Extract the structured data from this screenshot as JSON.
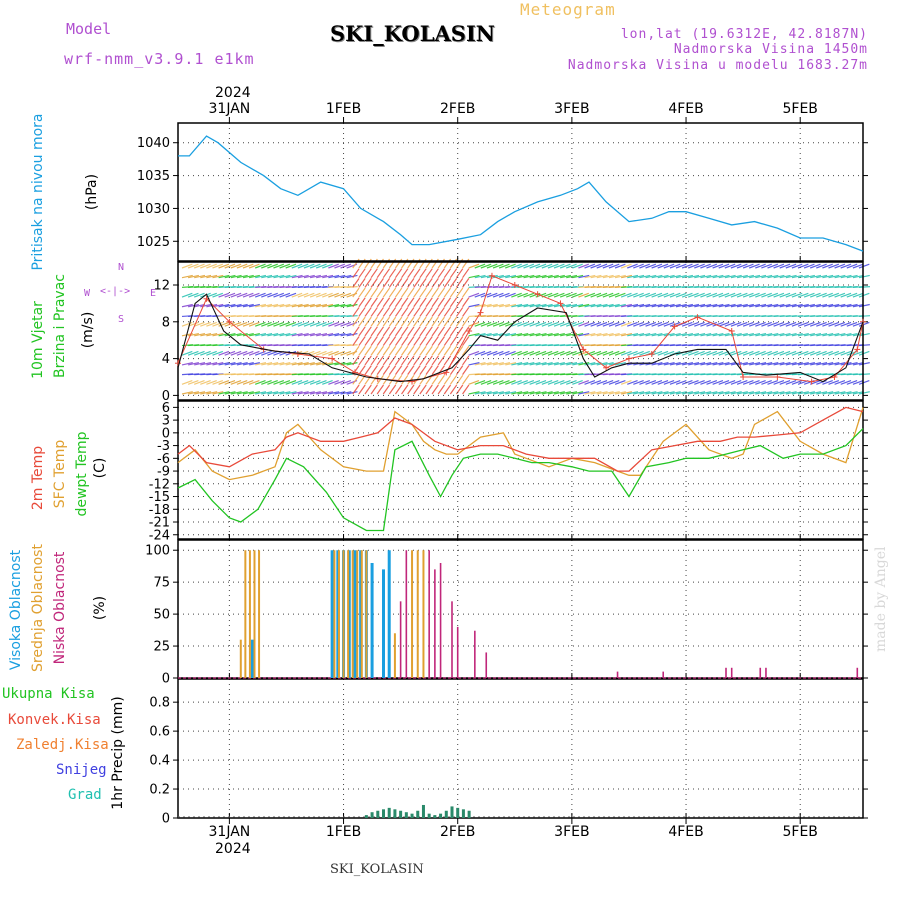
{
  "header": {
    "model_label": "Model",
    "model_name": "wrf-nmm_v3.9.1  e1km",
    "station": "SKI_KOLASIN",
    "product": "Meteogram",
    "lonlat": "lon,lat (19.6312E, 42.8187N)",
    "elevation": "Nadmorska Visina 1450m",
    "model_elevation": "Nadmorska Visina u modelu 1683.27m",
    "footer_station": "SKI_KOLASIN",
    "credit": "made by Angel"
  },
  "colors": {
    "pressure": "#1a9fe0",
    "temp": "#e84a3a",
    "sfc_temp": "#e0a030",
    "dewpt": "#22c422",
    "high_cloud": "#1a9fe0",
    "mid_cloud": "#e0a030",
    "low_cloud": "#c0267a",
    "precip": "#2a8a6a",
    "header_purple": "#b050d0",
    "header_orange": "#f0c060"
  },
  "time_axis": {
    "year": "2024",
    "labels": [
      "31JAN",
      "1FEB",
      "2FEB",
      "3FEB",
      "4FEB",
      "5FEB"
    ],
    "day_start": 30.55,
    "day_end": 36.55
  },
  "chart_data": [
    {
      "type": "line",
      "ylabel_lines": [
        "Pritisak na nivou mora",
        "(hPa)"
      ],
      "ylim": [
        1022,
        1043
      ],
      "yticks": [
        "1025",
        "1030",
        "1035",
        "1040"
      ],
      "series": [
        {
          "x": [
            30.55,
            30.65,
            30.8,
            30.9,
            31.1,
            31.3,
            31.45,
            31.6,
            31.8,
            32.0,
            32.15,
            32.35,
            32.5,
            32.6,
            32.75,
            33.0,
            33.2,
            33.35,
            33.5,
            33.7,
            33.9,
            34.05,
            34.15,
            34.3,
            34.5,
            34.7,
            34.85,
            35.0,
            35.2,
            35.4,
            35.6,
            35.8,
            36.0,
            36.2,
            36.4,
            36.55
          ],
          "values": [
            1038,
            1038,
            1041,
            1040,
            1037,
            1035,
            1033,
            1032,
            1034,
            1033,
            1030,
            1028,
            1026,
            1024.5,
            1024.5,
            1025.3,
            1026,
            1028,
            1029.5,
            1031,
            1032,
            1033,
            1034,
            1031,
            1028,
            1028.5,
            1029.5,
            1029.5,
            1028.5,
            1027.5,
            1028,
            1027,
            1025.5,
            1025.5,
            1024.5,
            1023.5
          ]
        }
      ]
    },
    {
      "type": "line",
      "ylabel_lines": [
        "10m Vjetar",
        "Brzina i Pravac",
        "(m/s)"
      ],
      "ylim": [
        -0.5,
        14.5
      ],
      "yticks": [
        "0",
        "4",
        "8",
        "12"
      ],
      "compass": [
        "N",
        "<-|->",
        "S",
        "W",
        "E"
      ],
      "series": [
        {
          "name": "speed",
          "x": [
            30.55,
            30.7,
            30.8,
            30.95,
            31.1,
            31.4,
            31.7,
            31.9,
            32.2,
            32.5,
            32.7,
            32.95,
            33.1,
            33.2,
            33.35,
            33.5,
            33.7,
            33.95,
            34.1,
            34.2,
            34.35,
            34.5,
            34.7,
            34.9,
            35.1,
            35.35,
            35.5,
            35.7,
            36.0,
            36.2,
            36.4,
            36.55
          ],
          "values": [
            3,
            10,
            11,
            7,
            5.5,
            4.8,
            4.5,
            3,
            2,
            1.5,
            1.8,
            3,
            5,
            6.5,
            6,
            8,
            9.5,
            9,
            4,
            2,
            3,
            3.5,
            3.5,
            4.5,
            5,
            5,
            2.5,
            2.2,
            2.5,
            1.5,
            3,
            8
          ]
        },
        {
          "name": "gust",
          "x": [
            30.55,
            30.8,
            31.0,
            31.3,
            31.6,
            31.9,
            32.1,
            32.3,
            32.6,
            32.9,
            33.1,
            33.2,
            33.3,
            33.5,
            33.7,
            33.9,
            34.1,
            34.3,
            34.5,
            34.7,
            34.9,
            35.1,
            35.4,
            35.5,
            35.8,
            36.1,
            36.3,
            36.5,
            36.55
          ],
          "values": [
            3.5,
            10.5,
            8,
            5,
            4.5,
            4,
            2.5,
            1.8,
            1.5,
            2.5,
            7,
            9,
            13,
            12,
            11,
            10,
            5,
            3,
            4,
            4.5,
            7.5,
            8.5,
            7,
            2,
            2,
            1.5,
            2,
            5,
            8
          ]
        }
      ]
    },
    {
      "type": "line",
      "ylabel_lines": [
        "2m Temp",
        "SFC Temp",
        "dewpt Temp",
        "(C)"
      ],
      "ylim": [
        -25,
        7.5
      ],
      "yticks": [
        "6",
        "3",
        "0",
        "-3",
        "-6",
        "-9",
        "-12",
        "-15",
        "-18",
        "-21",
        "-24"
      ],
      "series": [
        {
          "name": "2m Temp",
          "x": [
            30.55,
            30.65,
            30.8,
            31.0,
            31.2,
            31.4,
            31.5,
            31.6,
            31.8,
            32.0,
            32.15,
            32.3,
            32.45,
            32.6,
            32.8,
            33.0,
            33.2,
            33.4,
            33.6,
            33.8,
            34.0,
            34.2,
            34.4,
            34.5,
            34.7,
            34.9,
            35.1,
            35.3,
            35.45,
            35.6,
            35.8,
            36.0,
            36.2,
            36.4,
            36.55
          ],
          "values": [
            -5,
            -3,
            -7,
            -8,
            -5,
            -4,
            -1,
            0,
            -2,
            -2,
            -1,
            0,
            3.5,
            2,
            -2,
            -4,
            -3,
            -3,
            -5,
            -6,
            -6,
            -6,
            -9,
            -9,
            -4,
            -3,
            -2,
            -2,
            -1,
            -1,
            -0.5,
            0,
            3,
            6,
            5
          ]
        },
        {
          "name": "SFC Temp",
          "x": [
            30.55,
            30.7,
            30.85,
            31.0,
            31.2,
            31.4,
            31.5,
            31.6,
            31.8,
            32.0,
            32.2,
            32.35,
            32.45,
            32.6,
            32.7,
            32.8,
            32.9,
            33.0,
            33.2,
            33.4,
            33.5,
            33.6,
            33.8,
            34.0,
            34.2,
            34.4,
            34.5,
            34.6,
            34.8,
            35.0,
            35.2,
            35.4,
            35.5,
            35.6,
            35.8,
            36.0,
            36.2,
            36.4,
            36.55
          ],
          "values": [
            -7,
            -4,
            -9,
            -11,
            -10,
            -8,
            0,
            2,
            -4,
            -8,
            -9,
            -9,
            5,
            2,
            -2,
            -4,
            -5,
            -5,
            -1,
            0,
            -5,
            -6,
            -8,
            -6,
            -7,
            -9,
            -10,
            -10,
            -2,
            2,
            -4,
            -6,
            -5,
            2,
            5,
            -2,
            -5,
            -7,
            6
          ]
        },
        {
          "name": "dewpt Temp",
          "x": [
            30.55,
            30.7,
            30.85,
            31.0,
            31.1,
            31.25,
            31.4,
            31.5,
            31.65,
            31.85,
            32.0,
            32.2,
            32.35,
            32.45,
            32.6,
            32.75,
            32.85,
            32.95,
            33.05,
            33.2,
            33.35,
            33.5,
            33.65,
            33.8,
            34.0,
            34.15,
            34.35,
            34.5,
            34.65,
            34.85,
            35.0,
            35.2,
            35.35,
            35.5,
            35.65,
            35.85,
            36.0,
            36.2,
            36.4,
            36.55
          ],
          "values": [
            -13,
            -11,
            -16,
            -20,
            -21,
            -18,
            -11,
            -6,
            -8,
            -14,
            -20,
            -23,
            -23,
            -4,
            -2,
            -10,
            -15,
            -10,
            -6,
            -5,
            -5,
            -6,
            -7,
            -7,
            -8,
            -9,
            -9,
            -15,
            -8,
            -7,
            -6,
            -6,
            -5,
            -4,
            -3,
            -6,
            -5,
            -5,
            -3,
            1
          ]
        }
      ]
    },
    {
      "type": "bar",
      "ylabel_lines": [
        "Visoka Oblacnost",
        "Srednja Oblacnost",
        "Niska Oblacnost",
        "(%)"
      ],
      "ylim": [
        0,
        108
      ],
      "yticks": [
        "0",
        "25",
        "50",
        "75",
        "100"
      ],
      "series": [
        {
          "name": "Visoka Oblacnost",
          "x": [
            31.2,
            31.9,
            31.95,
            32.0,
            32.05,
            32.1,
            32.15,
            32.2,
            32.25,
            32.35,
            32.4
          ],
          "values": [
            30,
            100,
            100,
            100,
            100,
            100,
            100,
            100,
            90,
            85,
            100
          ]
        },
        {
          "name": "Srednja Oblacnost",
          "x": [
            31.1,
            31.14,
            31.18,
            31.22,
            31.26,
            31.92,
            31.96,
            32.0,
            32.04,
            32.08,
            32.12,
            32.16,
            32.2,
            32.45,
            32.6,
            32.65,
            32.7
          ],
          "values": [
            30,
            100,
            100,
            100,
            100,
            100,
            100,
            100,
            100,
            100,
            100,
            100,
            100,
            35,
            100,
            100,
            100
          ]
        },
        {
          "name": "Niska Oblacnost",
          "x": [
            32.5,
            32.55,
            32.75,
            32.8,
            32.85,
            32.95,
            33.0,
            33.15,
            33.25,
            34.4,
            34.8,
            35.35,
            35.4,
            35.65,
            35.7,
            36.5
          ],
          "values": [
            60,
            100,
            100,
            85,
            90,
            60,
            40,
            37,
            20,
            5,
            5,
            8,
            8,
            8,
            8,
            8
          ]
        }
      ]
    },
    {
      "type": "bar",
      "ylabel_lines": [
        "1hr Precip (mm)"
      ],
      "legend": [
        "Ukupna Kisa",
        "Konvek.Kisa",
        "Zaledj.Kisa",
        "Snijeg",
        "Grad"
      ],
      "ylim": [
        0,
        0.96
      ],
      "yticks": [
        "0",
        "0.2",
        "0.4",
        "0.6",
        "0.8"
      ],
      "series": [
        {
          "name": "Ukupna Kisa",
          "x": [
            32.2,
            32.25,
            32.3,
            32.35,
            32.4,
            32.45,
            32.5,
            32.55,
            32.6,
            32.65,
            32.7,
            32.75,
            32.8,
            32.85,
            32.9,
            32.95,
            33.0,
            33.05,
            33.1
          ],
          "values": [
            0.02,
            0.04,
            0.05,
            0.06,
            0.07,
            0.06,
            0.05,
            0.04,
            0.03,
            0.05,
            0.09,
            0.03,
            0.02,
            0.03,
            0.05,
            0.08,
            0.07,
            0.06,
            0.05
          ]
        }
      ]
    }
  ]
}
